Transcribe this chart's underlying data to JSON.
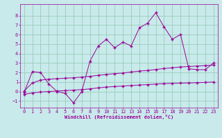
{
  "xlabel": "Windchill (Refroidissement éolien,°C)",
  "background_color": "#c8eaea",
  "grid_color": "#99ccbb",
  "line_color": "#990099",
  "spine_color": "#990099",
  "xlim": [
    -0.5,
    23.5
  ],
  "ylim": [
    -1.7,
    9.2
  ],
  "xtick_vals": [
    0,
    1,
    2,
    3,
    4,
    5,
    6,
    7,
    8,
    9,
    10,
    11,
    12,
    13,
    14,
    15,
    16,
    17,
    18,
    19,
    20,
    21,
    22,
    23
  ],
  "ytick_vals": [
    -1,
    0,
    1,
    2,
    3,
    4,
    5,
    6,
    7,
    8
  ],
  "line1_x": [
    0,
    1,
    2,
    3,
    4,
    5,
    6,
    7,
    8,
    9,
    10,
    11,
    12,
    13,
    14,
    15,
    16,
    17,
    18,
    19,
    20,
    21,
    22,
    23
  ],
  "line1_y": [
    -0.1,
    2.1,
    2.0,
    0.8,
    0.0,
    -0.2,
    -1.2,
    0.0,
    3.2,
    4.8,
    5.5,
    4.6,
    5.2,
    4.8,
    6.7,
    7.2,
    8.3,
    6.8,
    5.5,
    6.0,
    2.4,
    2.3,
    2.3,
    3.0
  ],
  "line2_x": [
    0,
    1,
    2,
    3,
    4,
    5,
    6,
    7,
    8,
    9,
    10,
    11,
    12,
    13,
    14,
    15,
    16,
    17,
    18,
    19,
    20,
    21,
    22,
    23
  ],
  "line2_y": [
    0.05,
    0.9,
    1.2,
    1.3,
    1.35,
    1.4,
    1.45,
    1.52,
    1.6,
    1.7,
    1.8,
    1.88,
    1.95,
    2.05,
    2.15,
    2.22,
    2.32,
    2.42,
    2.5,
    2.58,
    2.63,
    2.68,
    2.73,
    2.78
  ],
  "line3_x": [
    0,
    1,
    2,
    3,
    4,
    5,
    6,
    7,
    8,
    9,
    10,
    11,
    12,
    13,
    14,
    15,
    16,
    17,
    18,
    19,
    20,
    21,
    22,
    23
  ],
  "line3_y": [
    -0.3,
    -0.15,
    -0.05,
    0.0,
    0.05,
    0.1,
    0.15,
    0.2,
    0.28,
    0.38,
    0.47,
    0.52,
    0.58,
    0.63,
    0.68,
    0.73,
    0.78,
    0.83,
    0.86,
    0.88,
    0.9,
    0.93,
    0.96,
    1.0
  ],
  "tick_fontsize": 5.0,
  "xlabel_fontsize": 5.0,
  "marker": "+",
  "markersize": 3.0,
  "linewidth": 0.7
}
